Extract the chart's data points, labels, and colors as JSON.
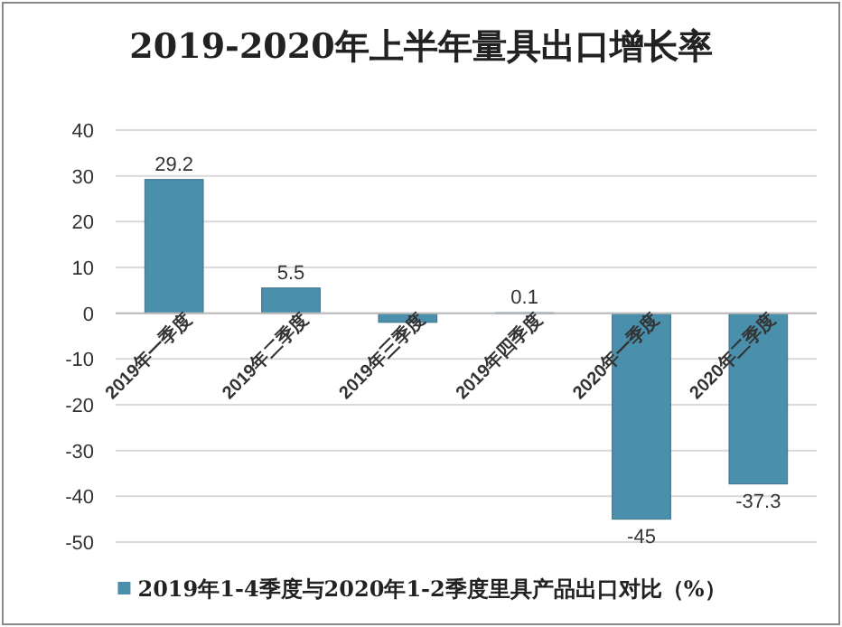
{
  "chart_data": {
    "type": "bar",
    "title": "2019-2020年上半年量具出口增长率",
    "categories": [
      "2019年一季度",
      "2019年二季度",
      "2019年三季度",
      "2019年四季度",
      "2020年一季度",
      "2020年二季度"
    ],
    "series": [
      {
        "name": "2019年1-4季度与2020年1-2季度里具产品出口对比（%）",
        "color": "#4a8fab",
        "values": [
          29.2,
          5.5,
          -2,
          0.1,
          -45,
          -37.3
        ],
        "value_labels": [
          "29.2",
          "5.5",
          null,
          "0.1",
          "-45",
          "-37.3"
        ]
      }
    ],
    "ylim": [
      -50,
      40
    ],
    "yticks": [
      -50,
      -40,
      -30,
      -20,
      -10,
      0,
      10,
      20,
      30,
      40
    ],
    "grid": "y",
    "legend": "bottom"
  }
}
